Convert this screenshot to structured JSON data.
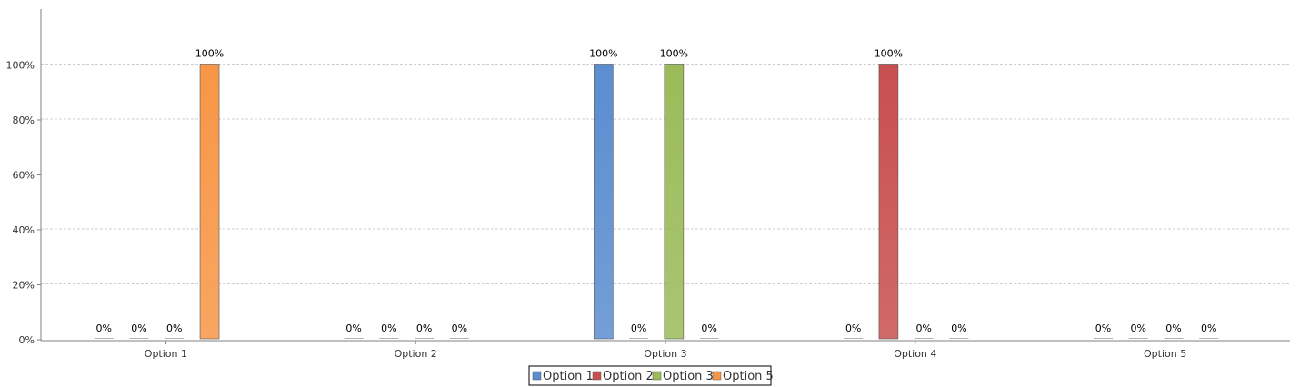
{
  "chart_data": {
    "type": "bar",
    "title": "",
    "xlabel": "",
    "ylabel": "",
    "categories": [
      "Option 1",
      "Option 2",
      "Option 3",
      "Option 4",
      "Option 5"
    ],
    "ylim": [
      0,
      1.2
    ],
    "yticks": [
      {
        "value": 0,
        "label": "0%"
      },
      {
        "value": 0.2,
        "label": "20%"
      },
      {
        "value": 0.4,
        "label": "40%"
      },
      {
        "value": 0.6,
        "label": "60%"
      },
      {
        "value": 0.8,
        "label": "80%"
      },
      {
        "value": 1.0,
        "label": "100%"
      }
    ],
    "grid": true,
    "legend_position": "bottom-center",
    "series": [
      {
        "name": "Option 1",
        "color": "#5b8dd0",
        "values": [
          0,
          0,
          1.0,
          0,
          0
        ],
        "labels": [
          "0%",
          "0%",
          "100%",
          "0%",
          "0%"
        ]
      },
      {
        "name": "Option 2",
        "color": "#c84f4f",
        "values": [
          0,
          0,
          0,
          1.0,
          0
        ],
        "labels": [
          "0%",
          "0%",
          "0%",
          "100%",
          "0%"
        ]
      },
      {
        "name": "Option 3",
        "color": "#9bbb59",
        "values": [
          0,
          0,
          1.0,
          0,
          0
        ],
        "labels": [
          "0%",
          "0%",
          "100%",
          "0%",
          "0%"
        ]
      },
      {
        "name": "Option 5",
        "color": "#f79646",
        "values": [
          1.0,
          0,
          0,
          0,
          0
        ],
        "labels": [
          "100%",
          "0%",
          "0%",
          "0%",
          "0%"
        ]
      }
    ]
  }
}
